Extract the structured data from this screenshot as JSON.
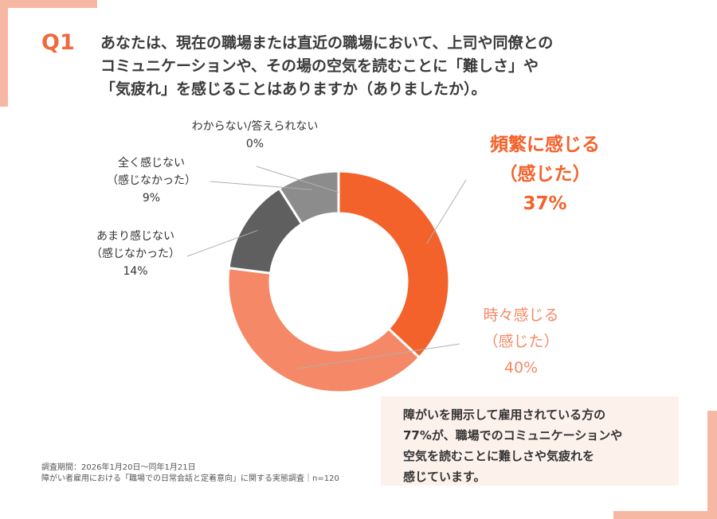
{
  "question": {
    "label": "Q1",
    "lines": [
      "あなたは、現在の職場または直近の職場において、上司や同僚との",
      "コミュニケーションや、その場の空気を読むことに「難しさ」や",
      "「気疲れ」を感じることはありますか（ありましたか）。"
    ]
  },
  "chart_data": {
    "type": "pie",
    "style": "donut",
    "slices": [
      {
        "name": "頻繁に感じる（感じた）",
        "label_lines": [
          "頻繁に感じる",
          "（感じた）"
        ],
        "value": 37,
        "value_label": "37%",
        "color": "#f4622b"
      },
      {
        "name": "時々感じる（感じた）",
        "label_lines": [
          "時々感じる",
          "（感じた）"
        ],
        "value": 40,
        "value_label": "40%",
        "color": "#f58866"
      },
      {
        "name": "あまり感じない（感じなかった）",
        "label_lines": [
          "あまり感じない",
          "（感じなかった）"
        ],
        "value": 14,
        "value_label": "14%",
        "color": "#5f5f5f"
      },
      {
        "name": "全く感じない（感じなかった）",
        "label_lines": [
          "全く感じない",
          "（感じなかった）"
        ],
        "value": 9,
        "value_label": "9%",
        "color": "#8c8c8c"
      },
      {
        "name": "わからない/答えられない",
        "label_lines": [
          "わからない/答えられない"
        ],
        "value": 0,
        "value_label": "0%",
        "color": "#b5b5b5"
      }
    ],
    "n": "n=120"
  },
  "callout": {
    "lines": [
      "障がいを開示して雇用されている方の",
      "77%が、職場でのコミュニケーションや",
      "空気を読むことに難しさや気疲れを",
      "感じています。"
    ]
  },
  "source": {
    "period": "調査期間：2026年1月20日～同年1月21日",
    "survey": "障がい者雇用における「職場での日常会話と定着意向」に関する実態調査｜n=120"
  },
  "colors": {
    "accent": "#ec6a3d",
    "accent_light": "#f58866",
    "callout_bg": "#fdf1ec",
    "frame": "#f7b8a3"
  }
}
